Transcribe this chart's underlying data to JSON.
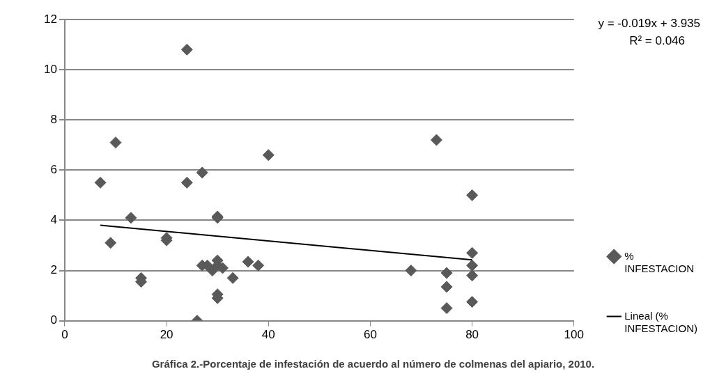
{
  "chart_data": {
    "type": "scatter",
    "title": "Gráfica 2.-Porcentaje de infestación de acuerdo al número de colmenas del apiario, 2010.",
    "xlim": [
      0,
      100
    ],
    "xticks": [
      0,
      20,
      40,
      60,
      80,
      100
    ],
    "ylim": [
      0,
      12
    ],
    "yticks": [
      0,
      2,
      4,
      6,
      8,
      10,
      12
    ],
    "grid": "y",
    "legend": "right",
    "marker": "diamond",
    "annotations": [
      "y = -0.019x + 3.935",
      "R² = 0.046"
    ],
    "series": [
      {
        "name": "% INFESTACION",
        "color": "#595959",
        "x": [
          7,
          9,
          10,
          13,
          15,
          15,
          20,
          20,
          24,
          24,
          26,
          27,
          27,
          28,
          29,
          30,
          30,
          30,
          30,
          30,
          30,
          31,
          33,
          36,
          38,
          40,
          68,
          73,
          75,
          75,
          75,
          80,
          80,
          80,
          80,
          80
        ],
        "values": [
          5.5,
          3.1,
          7.1,
          4.1,
          1.7,
          1.55,
          3.3,
          3.2,
          10.8,
          5.5,
          0,
          5.9,
          2.2,
          2.2,
          2.0,
          2.4,
          2.2,
          1.05,
          0.9,
          4.15,
          4.1,
          2.1,
          1.7,
          2.35,
          2.2,
          6.6,
          2.0,
          7.2,
          1.9,
          1.35,
          0.5,
          5.0,
          2.7,
          2.2,
          1.8,
          0.75
        ]
      },
      {
        "name": "Lineal (% INFESTACION)",
        "type": "line",
        "marker": "none",
        "color": "#000000",
        "x": [
          7,
          80
        ],
        "values": [
          3.8,
          2.42
        ]
      }
    ]
  }
}
